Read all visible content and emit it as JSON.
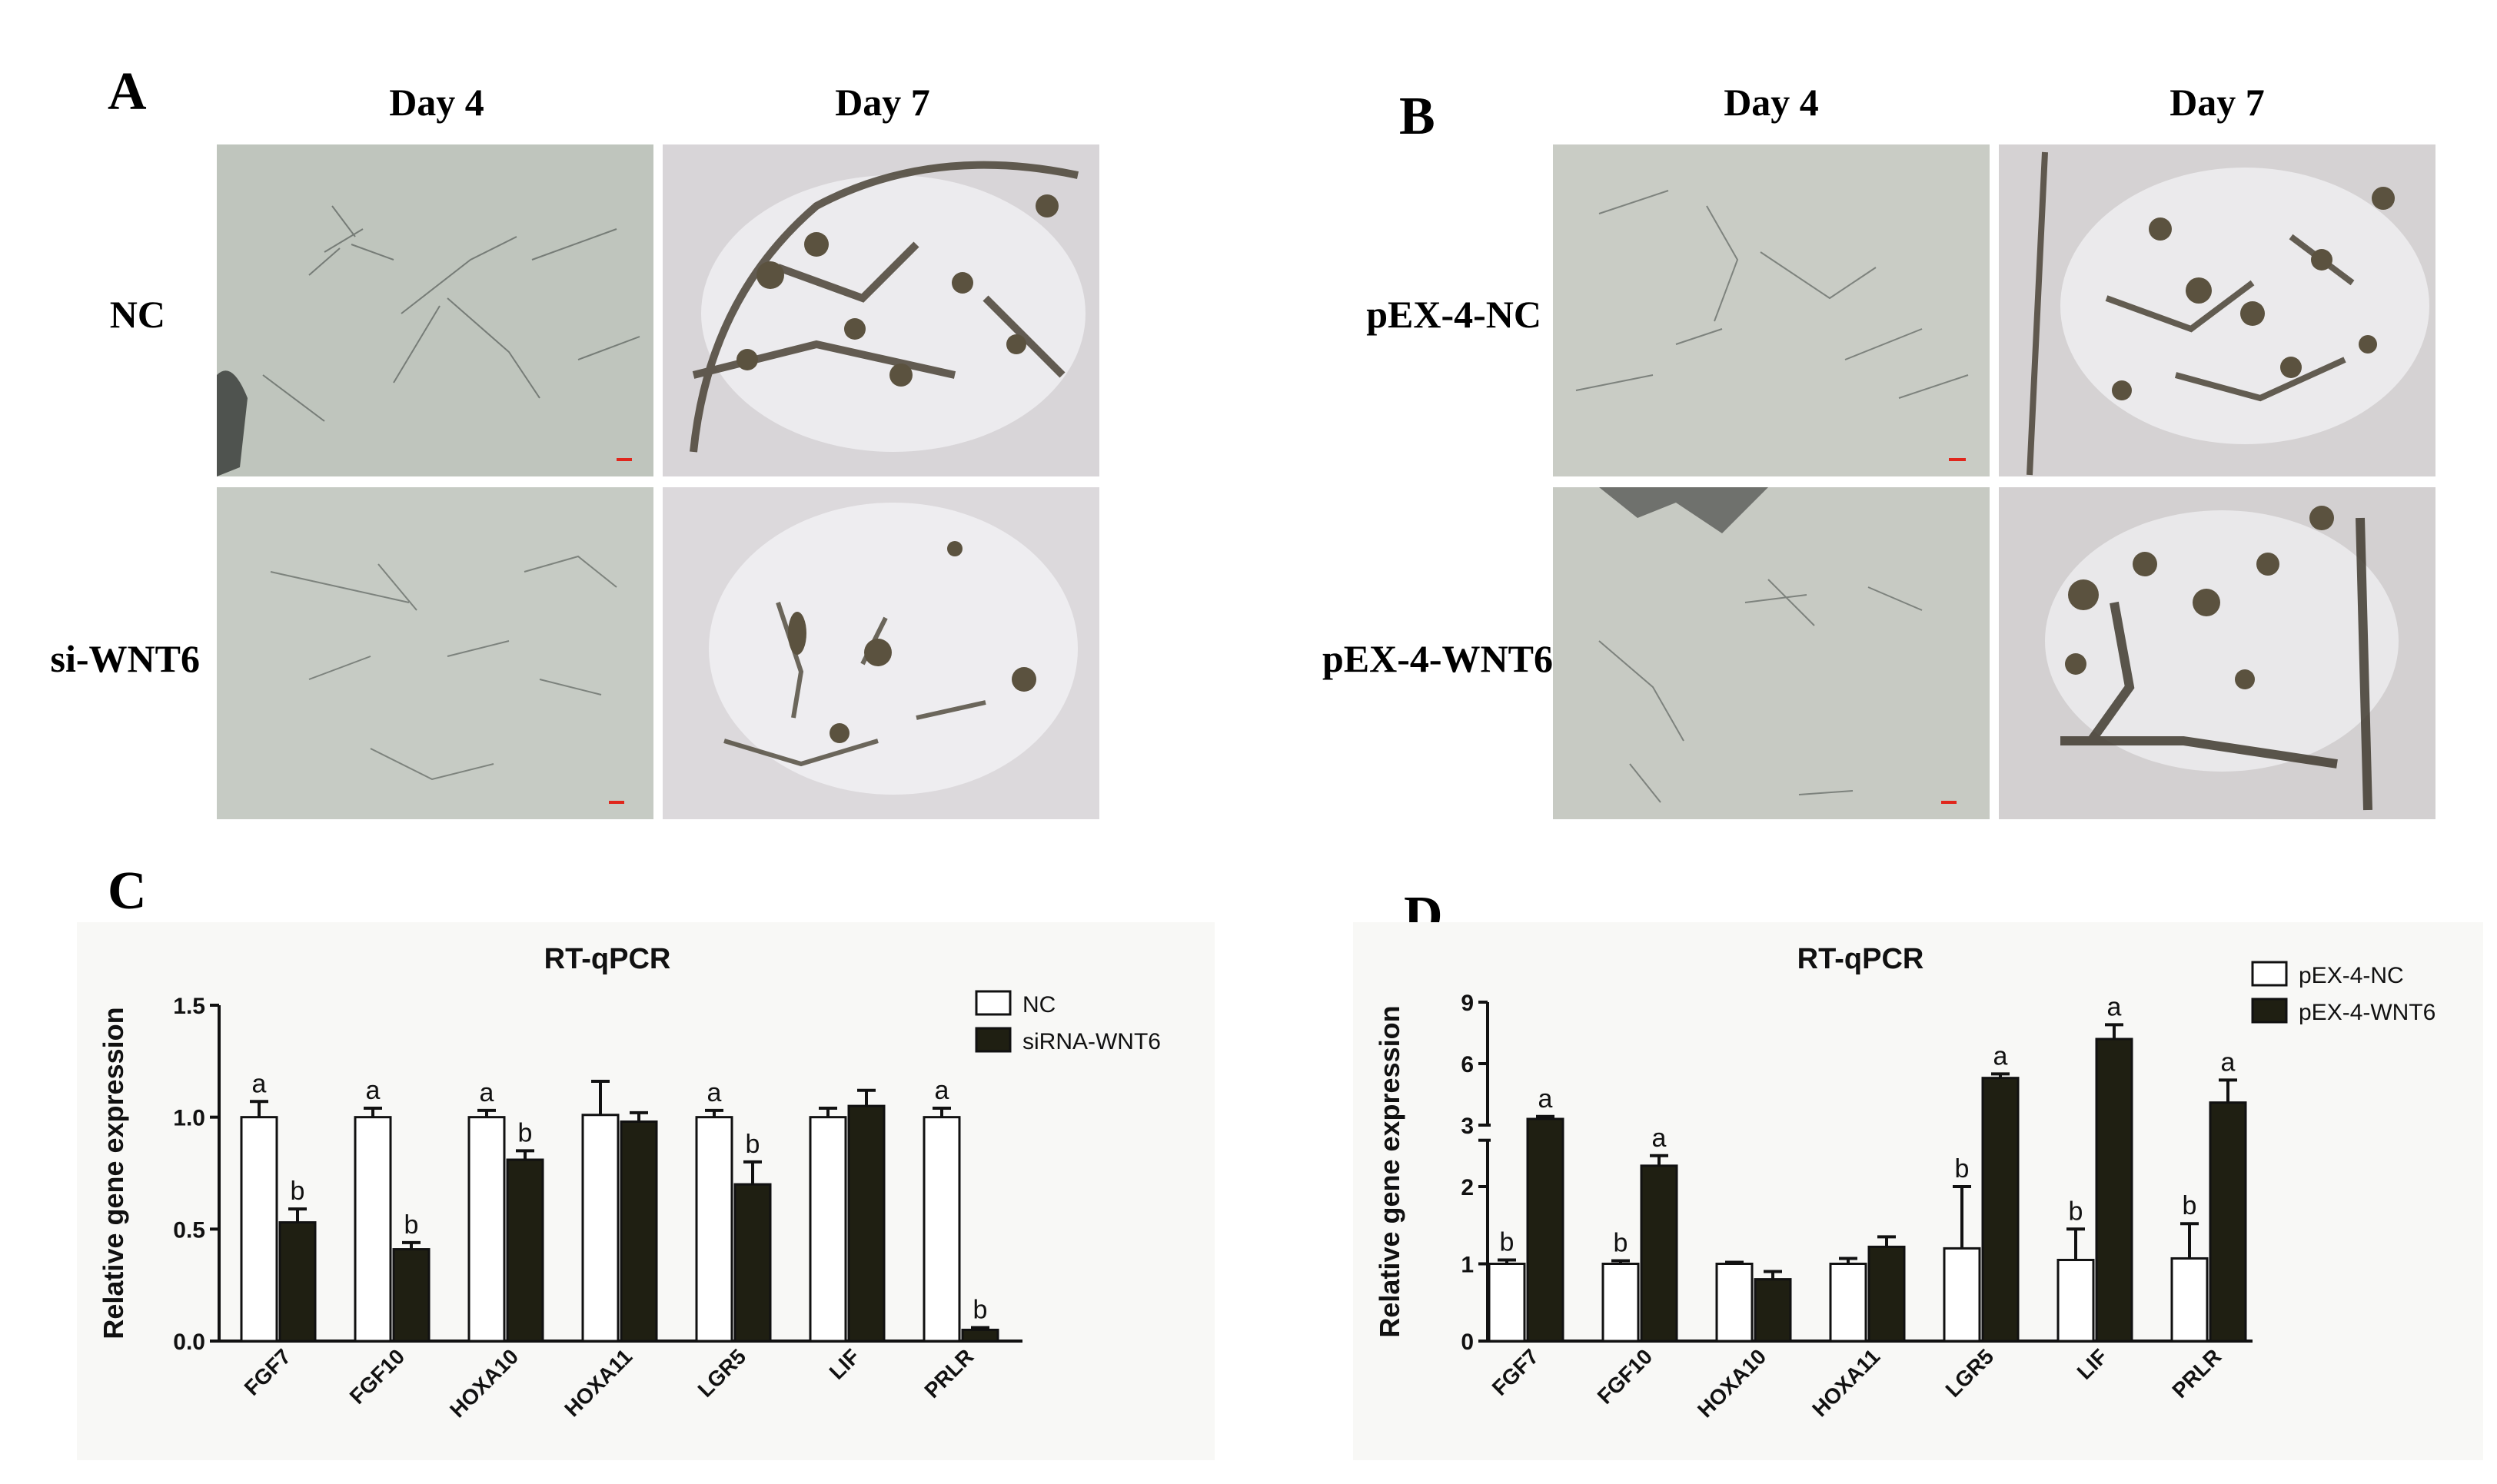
{
  "panels": {
    "a": {
      "letter": "A",
      "columns": [
        "Day 4",
        "Day 7"
      ],
      "rows": [
        "NC",
        "si-WNT6"
      ]
    },
    "b": {
      "letter": "B",
      "columns": [
        "Day 4",
        "Day 7"
      ],
      "rows": [
        "pEX-4-NC",
        "pEX-4-WNT6"
      ]
    },
    "c": {
      "letter": "C"
    },
    "d": {
      "letter": "D"
    }
  },
  "chart_data": [
    {
      "panel": "C",
      "type": "bar",
      "title": "RT-qPCR",
      "ylabel": "Relative gene expression",
      "xlabel": "",
      "categories": [
        "FGF7",
        "FGF10",
        "HOXA10",
        "HOXA11",
        "LGR5",
        "LIF",
        "PRLR"
      ],
      "ylim": [
        0,
        1.5
      ],
      "yticks": [
        "0.0",
        "0.5",
        "1.0",
        "1.5"
      ],
      "legend_position": "top-right",
      "series": [
        {
          "name": "NC",
          "color": "#ffffff",
          "values": [
            1.0,
            1.0,
            1.0,
            1.01,
            1.0,
            1.0,
            1.0
          ],
          "errors": [
            0.07,
            0.04,
            0.03,
            0.15,
            0.03,
            0.04,
            0.04
          ],
          "labels": [
            "a",
            "a",
            "a",
            "",
            "a",
            "",
            "a"
          ]
        },
        {
          "name": "siRNA-WNT6",
          "color": "#1f1f12",
          "values": [
            0.53,
            0.41,
            0.81,
            0.98,
            0.7,
            1.05,
            0.05
          ],
          "errors": [
            0.06,
            0.03,
            0.04,
            0.04,
            0.1,
            0.07,
            0.01
          ],
          "labels": [
            "b",
            "b",
            "b",
            "",
            "b",
            "",
            "b"
          ]
        }
      ]
    },
    {
      "panel": "D",
      "type": "bar",
      "title": "RT-qPCR",
      "ylabel": "Relative gene expression",
      "xlabel": "",
      "categories": [
        "FGF7",
        "FGF10",
        "HOXA10",
        "HOXA11",
        "LGR5",
        "LIF",
        "PRLR"
      ],
      "ylim": [
        0,
        9
      ],
      "axis_break": [
        2.6,
        3
      ],
      "yticks": [
        "0",
        "1",
        "2",
        "3",
        "6",
        "9"
      ],
      "legend_position": "top-right",
      "series": [
        {
          "name": "pEX-4-NC",
          "color": "#ffffff",
          "values": [
            1.0,
            1.0,
            1.0,
            1.0,
            1.2,
            1.05,
            1.07
          ],
          "errors": [
            0.05,
            0.04,
            0.02,
            0.07,
            0.8,
            0.4,
            0.45
          ],
          "labels": [
            "b",
            "b",
            "",
            "",
            "b",
            "b",
            "b"
          ]
        },
        {
          "name": "pEX-4-WNT6",
          "color": "#1f1f12",
          "values": [
            3.3,
            2.27,
            0.8,
            1.22,
            5.3,
            7.2,
            4.1
          ],
          "errors": [
            0.12,
            0.13,
            0.1,
            0.13,
            0.2,
            0.7,
            1.1
          ],
          "labels": [
            "a",
            "a",
            "",
            "",
            "a",
            "a",
            "a"
          ]
        }
      ]
    }
  ]
}
